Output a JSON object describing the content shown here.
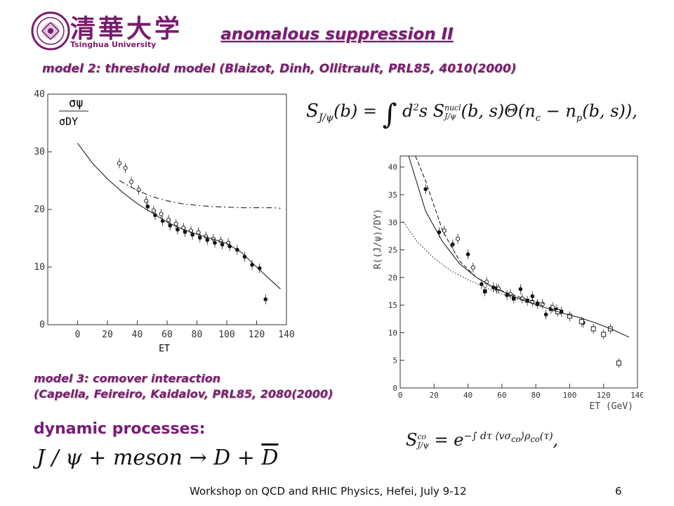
{
  "header": {
    "logo_cn": "清華大学",
    "logo_en": "Tsinghua University",
    "title": "anomalous suppression II"
  },
  "model2_caption": "model 2: threshold model (Blaizot, Dinh, Ollitrault, PRL85, 4010(2000)",
  "model3_caption_line1": "model 3: comover interaction",
  "model3_caption_line2": "(Capella, Feireiro, Kaidalov, PRL85, 2080(2000)",
  "dynamic_label": "dynamic processes:",
  "equations": {
    "threshold": "S_{J/ψ}(b) = ∫ d²s S^{nucl}_{J/ψ}(b,s) Θ(n_c − n_p(b,s)),",
    "comover": "S^{co}_{J/ψ} = e^{−∫ dτ ⟨vσ_co⟩ ρ_co(τ)},",
    "reaction": "J/ψ + meson → D + D̄"
  },
  "footer": {
    "text": "Workshop on QCD and RHIC Physics, Hefei, July 9-12",
    "page": "6"
  },
  "colors": {
    "accent": "#7b1a76"
  },
  "chart_data": [
    {
      "type": "scatter",
      "xlabel": "E_T",
      "ylabel": "σψ / σDY",
      "xlim": [
        -20,
        140
      ],
      "ylim": [
        0,
        40
      ],
      "xticks": [
        "0",
        "20",
        "40",
        "60",
        "80",
        "100",
        "120",
        "140"
      ],
      "yticks": [
        "0",
        "10",
        "20",
        "30",
        "40"
      ],
      "series": [
        {
          "marker": "open-circle",
          "x": [
            28,
            32,
            36,
            41,
            46,
            51,
            56,
            61,
            66,
            71,
            76,
            81,
            86,
            91,
            96,
            101
          ],
          "y": [
            28,
            27.2,
            24.8,
            23.4,
            21.5,
            19.8,
            19.2,
            18.2,
            17.5,
            16.8,
            16.3,
            16.0,
            15.3,
            14.9,
            14.5,
            14.2
          ]
        },
        {
          "marker": "filled-circle",
          "x": [
            47,
            52,
            57,
            62,
            67,
            72,
            77,
            82,
            87,
            92,
            97,
            102,
            107,
            112,
            117,
            122,
            126
          ],
          "y": [
            20.5,
            19.0,
            18.0,
            17.2,
            16.5,
            16.1,
            15.6,
            15.1,
            14.7,
            14.2,
            13.9,
            13.6,
            13.0,
            11.8,
            10.4,
            9.8,
            4.4
          ]
        },
        {
          "style": "solid",
          "x": [
            0,
            10,
            20,
            30,
            40,
            50,
            60,
            70,
            80,
            90,
            100,
            110,
            120,
            130,
            136
          ],
          "y": [
            31.5,
            28.0,
            25.3,
            23.0,
            21.0,
            19.4,
            17.8,
            16.6,
            15.7,
            14.9,
            14.1,
            12.5,
            10.0,
            7.6,
            6.2
          ]
        },
        {
          "style": "dash-dot",
          "x": [
            28,
            40,
            50,
            60,
            70,
            80,
            90,
            100,
            110,
            120,
            130,
            136
          ],
          "y": [
            25.0,
            23.3,
            22.2,
            21.5,
            21.0,
            20.7,
            20.5,
            20.4,
            20.3,
            20.3,
            20.3,
            20.2
          ]
        }
      ]
    },
    {
      "type": "scatter",
      "xlabel": "E_T (GeV)",
      "ylabel": "R((J/ψ)/DY)",
      "xlim": [
        0,
        140
      ],
      "ylim": [
        0,
        42
      ],
      "xticks": [
        "0",
        "20",
        "40",
        "60",
        "80",
        "100",
        "120",
        "140"
      ],
      "yticks": [
        "0",
        "5",
        "10",
        "15",
        "20",
        "25",
        "30",
        "35",
        "40"
      ],
      "series": [
        {
          "marker": "filled-circle",
          "x": [
            15,
            23,
            31,
            40,
            48,
            55,
            63,
            71,
            78,
            86,
            92,
            108
          ],
          "y": [
            36,
            28.2,
            26,
            24.2,
            18.8,
            18.2,
            16.8,
            17.9,
            16.6,
            13.3,
            14.2,
            11.8
          ]
        },
        {
          "marker": "filled-square",
          "x": [
            50,
            57,
            67,
            75,
            81,
            89,
            95
          ],
          "y": [
            17.5,
            18.0,
            16.2,
            15.8,
            15.2,
            14.3,
            13.8
          ]
        },
        {
          "marker": "open-circle",
          "x": [
            26,
            34,
            43,
            51,
            58,
            65,
            72,
            78,
            84,
            90
          ],
          "y": [
            28.5,
            27.0,
            21.8,
            19.2,
            18.0,
            17.0,
            16.2,
            15.6,
            15.2,
            14.6
          ]
        },
        {
          "marker": "open-square",
          "x": [
            93,
            100,
            107,
            114,
            120,
            124,
            129
          ],
          "y": [
            13.8,
            13.0,
            12.0,
            10.7,
            9.7,
            10.7,
            4.5
          ]
        },
        {
          "style": "solid",
          "x": [
            5,
            15,
            25,
            35,
            45,
            55,
            65,
            75,
            85,
            95,
            105,
            115,
            125,
            135
          ],
          "y": [
            42,
            32,
            26.5,
            22.5,
            20.0,
            18.2,
            16.8,
            15.6,
            14.6,
            13.6,
            12.8,
            11.8,
            10.6,
            9.2
          ]
        },
        {
          "style": "dashed",
          "x": [
            9,
            15,
            25,
            35,
            45,
            55,
            65,
            75,
            85
          ],
          "y": [
            42,
            37.5,
            28.5,
            23.0,
            20.0,
            18.2,
            17.0,
            16.0,
            15.3
          ]
        },
        {
          "style": "dotted",
          "x": [
            2,
            10,
            20,
            30,
            40,
            50,
            60,
            70,
            80
          ],
          "y": [
            30,
            26.5,
            23.5,
            21.2,
            19.6,
            18.2,
            17.0,
            16.0,
            15.3
          ]
        }
      ]
    }
  ]
}
